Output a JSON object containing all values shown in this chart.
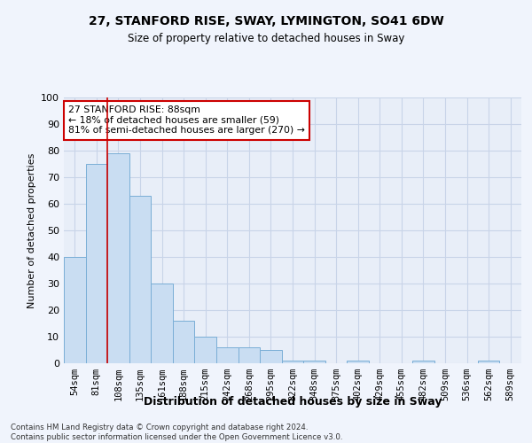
{
  "title1": "27, STANFORD RISE, SWAY, LYMINGTON, SO41 6DW",
  "title2": "Size of property relative to detached houses in Sway",
  "xlabel": "Distribution of detached houses by size in Sway",
  "ylabel": "Number of detached properties",
  "categories": [
    "54sqm",
    "81sqm",
    "108sqm",
    "135sqm",
    "161sqm",
    "188sqm",
    "215sqm",
    "242sqm",
    "268sqm",
    "295sqm",
    "322sqm",
    "348sqm",
    "375sqm",
    "402sqm",
    "429sqm",
    "455sqm",
    "482sqm",
    "509sqm",
    "536sqm",
    "562sqm",
    "589sqm"
  ],
  "values": [
    40,
    75,
    79,
    63,
    30,
    16,
    10,
    6,
    6,
    5,
    1,
    1,
    0,
    1,
    0,
    0,
    1,
    0,
    0,
    1,
    0
  ],
  "bar_color": "#c9ddf2",
  "bar_edge_color": "#7aaed6",
  "vline_x": 1.5,
  "vline_color": "#cc0000",
  "annotation_text": "27 STANFORD RISE: 88sqm\n← 18% of detached houses are smaller (59)\n81% of semi-detached houses are larger (270) →",
  "annotation_box_color": "#ffffff",
  "annotation_box_edge": "#cc0000",
  "ylim": [
    0,
    100
  ],
  "yticks": [
    0,
    10,
    20,
    30,
    40,
    50,
    60,
    70,
    80,
    90,
    100
  ],
  "grid_color": "#c8d4e8",
  "bg_color": "#e8eef8",
  "fig_color": "#f0f4fc",
  "footer": "Contains HM Land Registry data © Crown copyright and database right 2024.\nContains public sector information licensed under the Open Government Licence v3.0."
}
